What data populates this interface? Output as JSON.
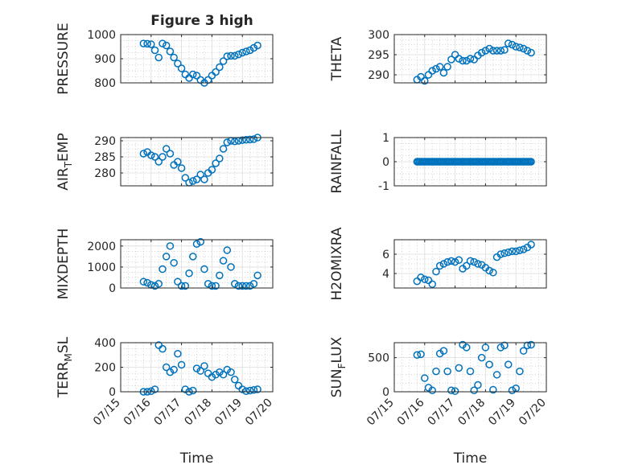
{
  "figure_title": "Figure 3 high",
  "marker_color": "#0072BD",
  "chart_data": [
    {
      "type": "scatter",
      "ylabel": "PRESSURE",
      "xlim": [
        "07/15",
        "07/20"
      ],
      "ylim": [
        800,
        1000
      ],
      "yticks": [
        800,
        900,
        1000
      ],
      "grid": true,
      "x": [
        "07/15 18:00",
        "07/15 21:00",
        "07/16 00:00",
        "07/16 03:00",
        "07/16 06:00",
        "07/16 09:00",
        "07/16 12:00",
        "07/16 15:00",
        "07/16 18:00",
        "07/16 21:00",
        "07/17 00:00",
        "07/17 03:00",
        "07/17 06:00",
        "07/17 09:00",
        "07/17 12:00",
        "07/17 15:00",
        "07/17 18:00",
        "07/17 21:00",
        "07/18 00:00",
        "07/18 03:00",
        "07/18 06:00",
        "07/18 09:00",
        "07/18 12:00",
        "07/18 15:00",
        "07/18 18:00",
        "07/18 21:00",
        "07/19 00:00",
        "07/19 03:00",
        "07/19 06:00",
        "07/19 09:00",
        "07/19 12:00"
      ],
      "y": [
        963,
        962,
        960,
        935,
        905,
        963,
        955,
        930,
        905,
        880,
        860,
        835,
        820,
        835,
        830,
        812,
        800,
        812,
        830,
        845,
        865,
        890,
        910,
        912,
        912,
        918,
        925,
        930,
        935,
        945,
        955
      ]
    },
    {
      "type": "scatter",
      "ylabel": "THETA",
      "xlim": [
        "07/15",
        "07/20"
      ],
      "ylim": [
        288,
        300
      ],
      "yticks": [
        290,
        295,
        300
      ],
      "grid": true,
      "x": [
        "07/15 18:00",
        "07/15 21:00",
        "07/16 00:00",
        "07/16 03:00",
        "07/16 06:00",
        "07/16 09:00",
        "07/16 12:00",
        "07/16 15:00",
        "07/16 18:00",
        "07/16 21:00",
        "07/17 00:00",
        "07/17 03:00",
        "07/17 06:00",
        "07/17 09:00",
        "07/17 12:00",
        "07/17 15:00",
        "07/17 18:00",
        "07/17 21:00",
        "07/18 00:00",
        "07/18 03:00",
        "07/18 06:00",
        "07/18 09:00",
        "07/18 12:00",
        "07/18 15:00",
        "07/18 18:00",
        "07/18 21:00",
        "07/19 00:00",
        "07/19 03:00",
        "07/19 06:00",
        "07/19 09:00",
        "07/19 12:00"
      ],
      "y": [
        288.8,
        289.5,
        288.5,
        290,
        291,
        291.5,
        292,
        290.5,
        292,
        293.8,
        295,
        294,
        293.5,
        293.5,
        294,
        293.8,
        294.8,
        295.5,
        296,
        296.5,
        296,
        296,
        296,
        296.2,
        297.8,
        297.5,
        297,
        296.8,
        296.5,
        296,
        295.5
      ]
    },
    {
      "type": "scatter",
      "ylabel": "AIR_TEMP",
      "xlim": [
        "07/15",
        "07/20"
      ],
      "ylim": [
        276,
        291
      ],
      "yticks": [
        280,
        285,
        290
      ],
      "grid": true,
      "x": [
        "07/15 18:00",
        "07/15 21:00",
        "07/16 00:00",
        "07/16 03:00",
        "07/16 06:00",
        "07/16 09:00",
        "07/16 12:00",
        "07/16 15:00",
        "07/16 18:00",
        "07/16 21:00",
        "07/17 00:00",
        "07/17 03:00",
        "07/17 06:00",
        "07/17 09:00",
        "07/17 12:00",
        "07/17 15:00",
        "07/17 18:00",
        "07/17 21:00",
        "07/18 00:00",
        "07/18 03:00",
        "07/18 06:00",
        "07/18 09:00",
        "07/18 12:00",
        "07/18 15:00",
        "07/18 18:00",
        "07/18 21:00",
        "07/19 00:00",
        "07/19 03:00",
        "07/19 06:00",
        "07/19 09:00",
        "07/19 12:00"
      ],
      "y": [
        286,
        286.5,
        285.5,
        285,
        283.5,
        285,
        287.5,
        286,
        282.5,
        283.5,
        281.5,
        278.5,
        277,
        277.5,
        278,
        279.5,
        278,
        280,
        281,
        283,
        284.5,
        287.5,
        289.5,
        290,
        289.8,
        290,
        290.2,
        290.3,
        290.4,
        290.5,
        291
      ]
    },
    {
      "type": "scatter",
      "ylabel": "RAINFALL",
      "xlim": [
        "07/15",
        "07/20"
      ],
      "ylim": [
        -1,
        1
      ],
      "yticks": [
        -1,
        0,
        1
      ],
      "grid": true,
      "x_start": "07/15 18:00",
      "x_end": "07/19 12:00",
      "y_constant": 0
    },
    {
      "type": "scatter",
      "ylabel": "MIXDEPTH",
      "xlim": [
        "07/15",
        "07/20"
      ],
      "ylim": [
        0,
        2300
      ],
      "yticks": [
        0,
        1000,
        2000
      ],
      "grid": true,
      "x": [
        "07/15 18:00",
        "07/15 21:00",
        "07/16 00:00",
        "07/16 03:00",
        "07/16 06:00",
        "07/16 09:00",
        "07/16 12:00",
        "07/16 15:00",
        "07/16 18:00",
        "07/16 21:00",
        "07/17 00:00",
        "07/17 03:00",
        "07/17 06:00",
        "07/17 09:00",
        "07/17 12:00",
        "07/17 15:00",
        "07/17 18:00",
        "07/17 21:00",
        "07/18 00:00",
        "07/18 03:00",
        "07/18 06:00",
        "07/18 09:00",
        "07/18 12:00",
        "07/18 15:00",
        "07/18 18:00",
        "07/18 21:00",
        "07/19 00:00",
        "07/19 03:00",
        "07/19 06:00",
        "07/19 09:00",
        "07/19 12:00"
      ],
      "y": [
        300,
        250,
        150,
        100,
        200,
        900,
        1500,
        2000,
        1200,
        300,
        100,
        100,
        700,
        1500,
        2100,
        2200,
        900,
        200,
        100,
        100,
        600,
        1300,
        1800,
        1000,
        200,
        100,
        100,
        100,
        100,
        200,
        600
      ]
    },
    {
      "type": "scatter",
      "ylabel": "H2OMIXRA",
      "xlim": [
        "07/15",
        "07/20"
      ],
      "ylim": [
        2.5,
        7.5
      ],
      "yticks": [
        4,
        6
      ],
      "grid": true,
      "x": [
        "07/15 18:00",
        "07/15 21:00",
        "07/16 00:00",
        "07/16 03:00",
        "07/16 06:00",
        "07/16 09:00",
        "07/16 12:00",
        "07/16 15:00",
        "07/16 18:00",
        "07/16 21:00",
        "07/17 00:00",
        "07/17 03:00",
        "07/17 06:00",
        "07/17 09:00",
        "07/17 12:00",
        "07/17 15:00",
        "07/17 18:00",
        "07/17 21:00",
        "07/18 00:00",
        "07/18 03:00",
        "07/18 06:00",
        "07/18 09:00",
        "07/18 12:00",
        "07/18 15:00",
        "07/18 18:00",
        "07/18 21:00",
        "07/19 00:00",
        "07/19 03:00",
        "07/19 06:00",
        "07/19 09:00",
        "07/19 12:00"
      ],
      "y": [
        3.2,
        3.6,
        3.4,
        3.3,
        2.9,
        4.2,
        4.8,
        5.0,
        5.2,
        5.3,
        5.2,
        5.4,
        4.5,
        4.8,
        5.3,
        5.2,
        5.0,
        4.9,
        4.6,
        4.3,
        4.1,
        5.7,
        6.0,
        6.1,
        6.2,
        6.3,
        6.3,
        6.4,
        6.5,
        6.7,
        7.0
      ]
    },
    {
      "type": "scatter",
      "ylabel": "TERR_MSL",
      "xlim": [
        "07/15",
        "07/20"
      ],
      "ylim": [
        0,
        400
      ],
      "yticks": [
        0,
        200,
        400
      ],
      "grid": true,
      "x": [
        "07/15 18:00",
        "07/15 21:00",
        "07/16 00:00",
        "07/16 03:00",
        "07/16 06:00",
        "07/16 09:00",
        "07/16 12:00",
        "07/16 15:00",
        "07/16 18:00",
        "07/16 21:00",
        "07/17 00:00",
        "07/17 03:00",
        "07/17 06:00",
        "07/17 09:00",
        "07/17 12:00",
        "07/17 15:00",
        "07/17 18:00",
        "07/17 21:00",
        "07/18 00:00",
        "07/18 03:00",
        "07/18 06:00",
        "07/18 09:00",
        "07/18 12:00",
        "07/18 15:00",
        "07/18 18:00",
        "07/18 21:00",
        "07/19 00:00",
        "07/19 03:00",
        "07/19 06:00",
        "07/19 09:00",
        "07/19 12:00"
      ],
      "y": [
        0,
        0,
        5,
        20,
        380,
        350,
        200,
        160,
        180,
        310,
        220,
        20,
        0,
        10,
        190,
        170,
        210,
        150,
        120,
        140,
        160,
        140,
        180,
        160,
        100,
        50,
        20,
        5,
        10,
        15,
        20
      ]
    },
    {
      "type": "scatter",
      "ylabel": "SUN_FLUX",
      "xlim": [
        "07/15",
        "07/20"
      ],
      "ylim": [
        0,
        720
      ],
      "yticks": [
        0,
        500
      ],
      "grid": true,
      "x": [
        "07/15 18:00",
        "07/15 21:00",
        "07/16 00:00",
        "07/16 03:00",
        "07/16 06:00",
        "07/16 09:00",
        "07/16 12:00",
        "07/16 15:00",
        "07/16 18:00",
        "07/16 21:00",
        "07/17 00:00",
        "07/17 03:00",
        "07/17 06:00",
        "07/17 09:00",
        "07/17 12:00",
        "07/17 15:00",
        "07/17 18:00",
        "07/17 21:00",
        "07/18 00:00",
        "07/18 03:00",
        "07/18 06:00",
        "07/18 09:00",
        "07/18 12:00",
        "07/18 15:00",
        "07/18 18:00",
        "07/18 21:00",
        "07/19 00:00",
        "07/19 03:00",
        "07/19 06:00",
        "07/19 09:00",
        "07/19 12:00"
      ],
      "y": [
        540,
        550,
        200,
        60,
        20,
        300,
        560,
        600,
        300,
        20,
        10,
        350,
        690,
        650,
        300,
        20,
        100,
        500,
        650,
        400,
        30,
        250,
        650,
        680,
        400,
        20,
        50,
        300,
        600,
        680,
        690
      ]
    }
  ],
  "xticks": [
    "07/15",
    "07/16",
    "07/17",
    "07/18",
    "07/19",
    "07/20"
  ],
  "xlabel": "Time"
}
